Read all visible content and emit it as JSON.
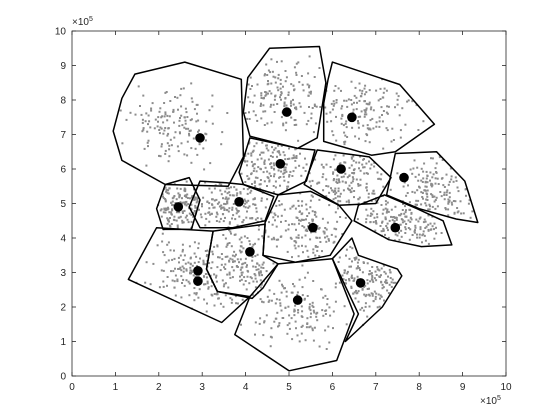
{
  "chart_data": {
    "type": "scatter",
    "title": "",
    "xlabel": "",
    "ylabel": "",
    "x_exponent": "×10",
    "y_exponent": "×10",
    "exponent_power": "5",
    "xlim": [
      0,
      10
    ],
    "ylim": [
      0,
      10
    ],
    "xticks": [
      "0",
      "1",
      "2",
      "3",
      "4",
      "5",
      "6",
      "7",
      "8",
      "9",
      "10"
    ],
    "yticks": [
      "0",
      "1",
      "2",
      "3",
      "4",
      "5",
      "6",
      "7",
      "8",
      "9",
      "10"
    ],
    "grid": false,
    "point_color": "#8c8c8c",
    "centroid_color": "#000000",
    "outline_color": "#000000",
    "centroids": [
      {
        "x": 2.95,
        "y": 6.9
      },
      {
        "x": 4.95,
        "y": 7.65
      },
      {
        "x": 6.45,
        "y": 7.5
      },
      {
        "x": 4.8,
        "y": 6.15
      },
      {
        "x": 6.2,
        "y": 6.0
      },
      {
        "x": 7.65,
        "y": 5.75
      },
      {
        "x": 2.45,
        "y": 4.9
      },
      {
        "x": 3.85,
        "y": 5.05
      },
      {
        "x": 5.55,
        "y": 4.3
      },
      {
        "x": 7.45,
        "y": 4.3
      },
      {
        "x": 4.1,
        "y": 3.6
      },
      {
        "x": 2.9,
        "y": 3.05
      },
      {
        "x": 2.9,
        "y": 2.75
      },
      {
        "x": 5.2,
        "y": 2.2
      },
      {
        "x": 6.65,
        "y": 2.7
      }
    ],
    "regions": [
      [
        [
          1.45,
          8.75
        ],
        [
          2.6,
          9.1
        ],
        [
          3.9,
          8.6
        ],
        [
          3.95,
          6.35
        ],
        [
          3.6,
          5.5
        ],
        [
          2.15,
          5.55
        ],
        [
          1.15,
          6.25
        ],
        [
          0.95,
          7.1
        ],
        [
          1.15,
          8.05
        ]
      ],
      [
        [
          4.05,
          8.65
        ],
        [
          4.55,
          9.5
        ],
        [
          5.7,
          9.55
        ],
        [
          5.85,
          8.5
        ],
        [
          5.65,
          6.9
        ],
        [
          5.2,
          6.6
        ],
        [
          4.1,
          6.95
        ],
        [
          3.95,
          7.65
        ]
      ],
      [
        [
          5.9,
          8.6
        ],
        [
          6.0,
          9.1
        ],
        [
          7.55,
          8.45
        ],
        [
          8.35,
          7.3
        ],
        [
          7.45,
          6.5
        ],
        [
          6.9,
          6.4
        ],
        [
          5.8,
          6.8
        ],
        [
          5.8,
          7.9
        ]
      ],
      [
        [
          4.1,
          6.9
        ],
        [
          5.2,
          6.6
        ],
        [
          5.6,
          6.55
        ],
        [
          5.4,
          5.65
        ],
        [
          4.75,
          5.25
        ],
        [
          3.95,
          5.55
        ],
        [
          3.85,
          5.9
        ]
      ],
      [
        [
          5.65,
          6.55
        ],
        [
          6.85,
          6.35
        ],
        [
          7.35,
          5.75
        ],
        [
          7.0,
          5.0
        ],
        [
          6.15,
          4.95
        ],
        [
          5.35,
          5.55
        ]
      ],
      [
        [
          7.45,
          6.45
        ],
        [
          8.4,
          6.5
        ],
        [
          9.05,
          5.65
        ],
        [
          9.35,
          4.45
        ],
        [
          8.85,
          4.55
        ],
        [
          8.0,
          4.85
        ],
        [
          7.25,
          5.25
        ]
      ],
      [
        [
          2.15,
          5.55
        ],
        [
          2.7,
          5.75
        ],
        [
          2.95,
          5.1
        ],
        [
          2.75,
          4.25
        ],
        [
          2.1,
          4.25
        ],
        [
          1.95,
          4.85
        ]
      ],
      [
        [
          2.95,
          5.65
        ],
        [
          3.55,
          5.6
        ],
        [
          3.95,
          5.55
        ],
        [
          4.65,
          5.2
        ],
        [
          4.45,
          4.5
        ],
        [
          3.7,
          4.3
        ],
        [
          2.95,
          4.3
        ],
        [
          2.7,
          4.9
        ]
      ],
      [
        [
          4.75,
          5.25
        ],
        [
          5.5,
          5.35
        ],
        [
          6.15,
          4.95
        ],
        [
          6.45,
          4.5
        ],
        [
          5.95,
          3.5
        ],
        [
          5.15,
          3.3
        ],
        [
          4.4,
          3.5
        ],
        [
          4.45,
          4.45
        ]
      ],
      [
        [
          6.6,
          4.95
        ],
        [
          7.2,
          5.25
        ],
        [
          7.95,
          4.85
        ],
        [
          8.55,
          4.5
        ],
        [
          8.75,
          3.8
        ],
        [
          8.05,
          3.75
        ],
        [
          7.3,
          3.95
        ],
        [
          6.5,
          4.5
        ]
      ],
      [
        [
          3.25,
          4.2
        ],
        [
          4.45,
          4.4
        ],
        [
          4.4,
          3.5
        ],
        [
          4.75,
          3.25
        ],
        [
          4.4,
          2.55
        ],
        [
          4.15,
          2.25
        ],
        [
          3.35,
          2.45
        ],
        [
          3.1,
          3.1
        ]
      ],
      [
        [
          1.95,
          4.3
        ],
        [
          3.25,
          4.2
        ],
        [
          3.1,
          3.1
        ],
        [
          3.35,
          2.45
        ],
        [
          4.1,
          2.3
        ],
        [
          3.45,
          1.55
        ],
        [
          1.3,
          2.8
        ]
      ],
      [
        [
          4.1,
          2.3
        ],
        [
          4.75,
          3.25
        ],
        [
          5.15,
          3.3
        ],
        [
          6.0,
          3.4
        ],
        [
          6.5,
          1.8
        ],
        [
          6.1,
          0.45
        ],
        [
          5.0,
          0.15
        ],
        [
          3.75,
          1.2
        ]
      ],
      [
        [
          6.0,
          3.4
        ],
        [
          6.45,
          4.0
        ],
        [
          6.6,
          3.5
        ],
        [
          7.5,
          3.1
        ],
        [
          7.6,
          2.9
        ],
        [
          7.15,
          2.0
        ],
        [
          6.3,
          1.0
        ],
        [
          6.6,
          1.8
        ]
      ]
    ]
  }
}
